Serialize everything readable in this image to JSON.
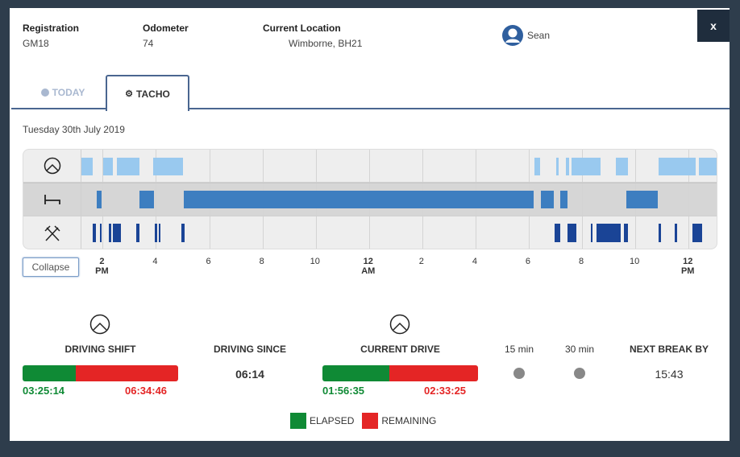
{
  "header": {
    "registration_label": "Registration",
    "registration": "GM18",
    "odometer_label": "Odometer",
    "odometer": "74",
    "location_label": "Current Location",
    "location": "Wimborne, BH21",
    "driver": "Sean",
    "close": "x"
  },
  "tabs": [
    {
      "label": "TODAY",
      "icon": "info-icon",
      "active": false
    },
    {
      "label": "TACHO",
      "icon": "tacho-icon",
      "active": true
    }
  ],
  "date": "Tuesday 30th July 2019",
  "timeline": {
    "collapse_label": "Collapse",
    "range": {
      "start": {
        "day": "Tue",
        "time": "13:12"
      },
      "end": {
        "day": "Wed",
        "time": "13:05"
      }
    },
    "ticks": [
      {
        "h": "2",
        "s": "PM",
        "bold": true
      },
      {
        "h": "4"
      },
      {
        "h": "6"
      },
      {
        "h": "8"
      },
      {
        "h": "10"
      },
      {
        "h": "12",
        "s": "AM",
        "bold": true
      },
      {
        "h": "2"
      },
      {
        "h": "4"
      },
      {
        "h": "6"
      },
      {
        "h": "8"
      },
      {
        "h": "10"
      },
      {
        "h": "12",
        "s": "PM",
        "bold": true
      }
    ],
    "rows": [
      {
        "activity": "driving",
        "icon": "steering-wheel-icon",
        "color": "#99c9ef",
        "segments": [
          [
            "Tue 13:12",
            "Tue 13:38"
          ],
          [
            "Tue 14:01",
            "Tue 14:23"
          ],
          [
            "Tue 14:32",
            "Tue 15:22"
          ],
          [
            "Tue 15:54",
            "Tue 17:01"
          ],
          [
            "Wed 06:13",
            "Wed 06:26"
          ],
          [
            "Wed 07:02",
            "Wed 07:08"
          ],
          [
            "Wed 07:23",
            "Wed 07:30"
          ],
          [
            "Wed 07:37",
            "Wed 08:41"
          ],
          [
            "Wed 09:17",
            "Wed 09:43"
          ],
          [
            "Wed 10:52",
            "Wed 12:16"
          ],
          [
            "Wed 12:23",
            "Wed 13:05"
          ]
        ]
      },
      {
        "activity": "rest",
        "icon": "bed-icon",
        "color": "#3d7ec0",
        "segments": [
          [
            "Tue 13:46",
            "Tue 13:58"
          ],
          [
            "Tue 15:22",
            "Tue 15:56"
          ],
          [
            "Tue 17:02",
            "Wed 06:11"
          ],
          [
            "Wed 06:27",
            "Wed 06:56"
          ],
          [
            "Wed 07:10",
            "Wed 07:27"
          ],
          [
            "Wed 09:40",
            "Wed 10:51"
          ]
        ]
      },
      {
        "activity": "work",
        "icon": "crossed-hammers-icon",
        "color": "#1a4496",
        "segments": [
          [
            "Tue 13:38",
            "Tue 13:44"
          ],
          [
            "Tue 13:53",
            "Tue 13:57"
          ],
          [
            "Tue 14:13",
            "Tue 14:19"
          ],
          [
            "Tue 14:23",
            "Tue 14:41"
          ],
          [
            "Tue 15:16",
            "Tue 15:22"
          ],
          [
            "Tue 15:57",
            "Tue 16:03"
          ],
          [
            "Tue 16:07",
            "Tue 16:10"
          ],
          [
            "Tue 16:58",
            "Tue 17:04"
          ],
          [
            "Wed 06:58",
            "Wed 07:10"
          ],
          [
            "Wed 07:27",
            "Wed 07:48"
          ],
          [
            "Wed 08:19",
            "Wed 08:24"
          ],
          [
            "Wed 08:33",
            "Wed 09:27"
          ],
          [
            "Wed 09:35",
            "Wed 09:43"
          ],
          [
            "Wed 10:52",
            "Wed 10:57"
          ],
          [
            "Wed 11:29",
            "Wed 11:35"
          ],
          [
            "Wed 12:08",
            "Wed 12:31"
          ]
        ]
      }
    ]
  },
  "stats": {
    "shift": {
      "label": "DRIVING SHIFT",
      "elapsed": "03:25:14",
      "remaining": "06:34:46",
      "elapsed_fraction": 0.342
    },
    "since": {
      "label": "DRIVING SINCE",
      "value": "06:14"
    },
    "drive": {
      "label": "CURRENT DRIVE",
      "elapsed": "01:56:35",
      "remaining": "02:33:25",
      "elapsed_fraction": 0.432
    },
    "b15": {
      "label": "15 min",
      "status": "grey"
    },
    "b30": {
      "label": "30 min",
      "status": "grey"
    },
    "next": {
      "label": "NEXT BREAK BY",
      "value": "15:43"
    }
  },
  "legend": {
    "elapsed": "ELAPSED",
    "remaining": "REMAINING",
    "elapsed_color": "#0f8a35",
    "remaining_color": "#e42525"
  }
}
